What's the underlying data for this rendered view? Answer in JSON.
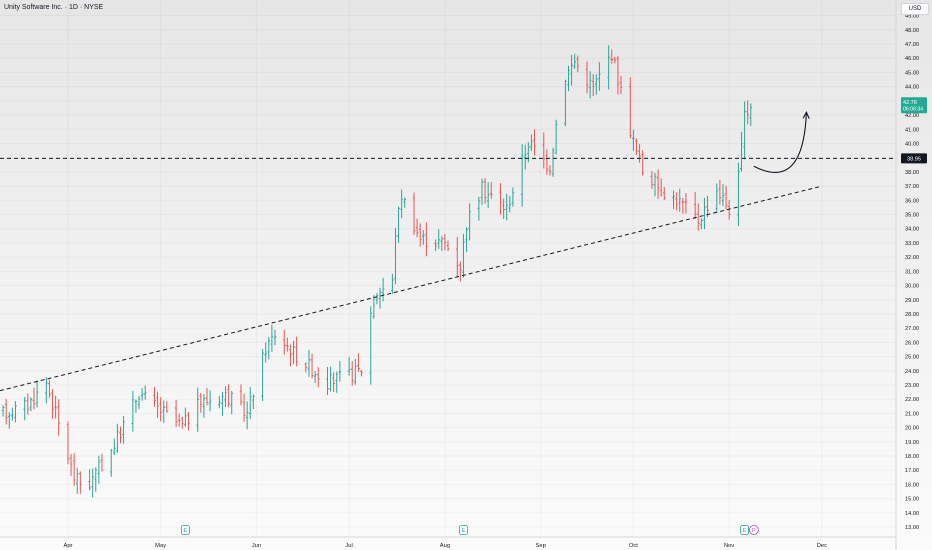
{
  "header": {
    "title": "Unity Software Inc. · 1D · NYSE",
    "currency": "USD"
  },
  "colors": {
    "up": "#26a69a",
    "down": "#ef5350",
    "axis_text": "#131722",
    "level_label_bg": "#131722",
    "price_label_bg": "#22ab94",
    "annotation": "#131722"
  },
  "event_badges": [
    {
      "date": "2024-05-09",
      "label": "E",
      "type": "earnings"
    },
    {
      "date": "2024-08-07",
      "label": "E",
      "type": "earnings"
    },
    {
      "date": "2024-11-06",
      "label": "E",
      "type": "earnings"
    },
    {
      "date": "2024-11-09",
      "label": "P",
      "type": "other"
    }
  ],
  "chart_data": {
    "type": "ohlc",
    "x_axis": {
      "range": [
        "2024-03-10",
        "2024-12-25"
      ],
      "ticks": [
        {
          "date": "2024-04-01",
          "label": "Apr"
        },
        {
          "date": "2024-05-01",
          "label": "May"
        },
        {
          "date": "2024-06-01",
          "label": "Jun"
        },
        {
          "date": "2024-07-01",
          "label": "Jul"
        },
        {
          "date": "2024-08-01",
          "label": "Aug"
        },
        {
          "date": "2024-09-01",
          "label": "Sep"
        },
        {
          "date": "2024-10-01",
          "label": "Oct"
        },
        {
          "date": "2024-11-01",
          "label": "Nov"
        },
        {
          "date": "2024-12-01",
          "label": "Dec"
        }
      ]
    },
    "y_axis": {
      "range": [
        12.3,
        50.1
      ],
      "ticks": [
        "13.00",
        "14.00",
        "15.00",
        "16.00",
        "17.00",
        "18.00",
        "19.00",
        "20.00",
        "21.00",
        "22.00",
        "23.00",
        "24.00",
        "25.00",
        "26.00",
        "27.00",
        "28.00",
        "29.00",
        "30.00",
        "31.00",
        "32.00",
        "33.00",
        "34.00",
        "35.00",
        "36.00",
        "37.00",
        "38.00",
        "39.00",
        "40.00",
        "41.00",
        "42.00",
        "43.00",
        "44.00",
        "45.00",
        "46.00",
        "47.00",
        "48.00",
        "49.00"
      ]
    },
    "anchors": [
      [
        "2024-03-11",
        21.0
      ],
      [
        "2024-03-19",
        21.6
      ],
      [
        "2024-03-25",
        23.2
      ],
      [
        "2024-04-03",
        16.5
      ],
      [
        "2024-04-07",
        15.7
      ],
      [
        "2024-04-16",
        18.8
      ],
      [
        "2024-04-24",
        22.5
      ],
      [
        "2024-05-01",
        21.2
      ],
      [
        "2024-05-08",
        20.1
      ],
      [
        "2024-05-14",
        21.8
      ],
      [
        "2024-05-22",
        22.3
      ],
      [
        "2024-05-29",
        21.0
      ],
      [
        "2024-06-04",
        25.6
      ],
      [
        "2024-06-07",
        26.6
      ],
      [
        "2024-06-14",
        25.1
      ],
      [
        "2024-06-24",
        23.2
      ],
      [
        "2024-07-02",
        23.8
      ],
      [
        "2024-07-05",
        24.1
      ],
      [
        "2024-07-09",
        29.4
      ],
      [
        "2024-07-15",
        30.2
      ],
      [
        "2024-07-16",
        33.8
      ],
      [
        "2024-07-18",
        36.4
      ],
      [
        "2024-07-24",
        33.3
      ],
      [
        "2024-08-01",
        33.0
      ],
      [
        "2024-08-06",
        31.4
      ],
      [
        "2024-08-08",
        34.4
      ],
      [
        "2024-08-13",
        36.8
      ],
      [
        "2024-08-21",
        35.4
      ],
      [
        "2024-08-28",
        40.1
      ],
      [
        "2024-09-04",
        38.4
      ],
      [
        "2024-09-08",
        44.4
      ],
      [
        "2024-09-12",
        45.8
      ],
      [
        "2024-09-18",
        43.9
      ],
      [
        "2024-09-24",
        46.4
      ],
      [
        "2024-10-01",
        40.1
      ],
      [
        "2024-10-04",
        38.1
      ],
      [
        "2024-10-10",
        36.8
      ],
      [
        "2024-10-16",
        35.9
      ],
      [
        "2024-10-22",
        34.6
      ],
      [
        "2024-10-28",
        36.8
      ],
      [
        "2024-11-01",
        35.4
      ],
      [
        "2024-11-04",
        37.6
      ],
      [
        "2024-11-06",
        41.8
      ],
      [
        "2024-11-08",
        42.76
      ]
    ],
    "seed": 17,
    "last_price": "42.76",
    "countdown": "06:06:34",
    "levels": [
      {
        "name": "horizontal",
        "price": 38.95,
        "label": "38.95",
        "style": "dashed"
      }
    ],
    "trendlines": [
      {
        "from": [
          "2024-03-10",
          22.6
        ],
        "to": [
          "2024-12-01",
          37.0
        ],
        "style": "dashed"
      }
    ],
    "arrow": {
      "from": [
        "2024-11-09",
        38.4
      ],
      "ctrl": [
        "2024-11-25",
        36.6
      ],
      "to": [
        "2024-11-26",
        42.2
      ]
    }
  }
}
